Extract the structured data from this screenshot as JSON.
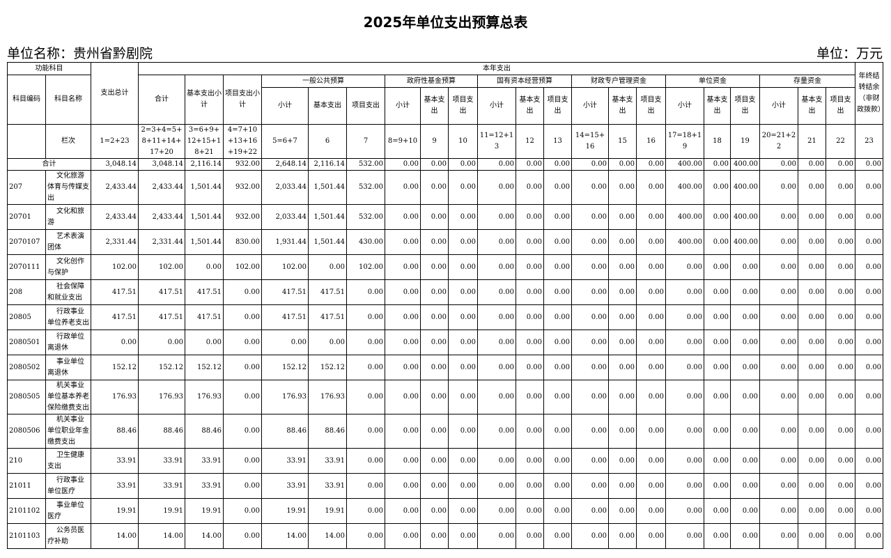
{
  "title": "2025年单位支出预算总表",
  "unit_name": "单位名称：贵州省黔剧院",
  "unit": "单位：万元",
  "header_rows": [
    [
      "功能科目",
      "支出总计",
      "本年支出",
      "年终结转结余（非财政拨款）"
    ],
    [
      "科目编码",
      "科目名称",
      "合计",
      "基本支出小计",
      "项目支出小计",
      "一般公共预算",
      "政府性基金预算",
      "国有资本经营预算",
      "财政专户管理资金",
      "单位资金",
      "存量资金"
    ],
    [
      "小计",
      "基本支出",
      "项目支出",
      "小计",
      "基本支出",
      "项目支出",
      "小计",
      "基本支出",
      "项目支出",
      "小计",
      "基本支出",
      "项目支出",
      "小计",
      "基本支出",
      "项目支出",
      "小计",
      "基本支出",
      "项目支出"
    ],
    [
      "栏次",
      "1=2+23",
      "2=3+4=5+8+11+14+17+20",
      "3=6+9+12+15+18+21",
      "4=7+10+13+16+19+22",
      "5=6+7",
      "6",
      "7",
      "8=9+10",
      "9",
      "10",
      "11=12+13",
      "12",
      "13",
      "14=15+16",
      "15",
      "16",
      "17=18+19",
      "18",
      "19",
      "20=21+22",
      "21",
      "22",
      "23"
    ]
  ],
  "total": {
    "label": "合计",
    "values": [
      "3,048.14",
      "3,048.14",
      "2,116.14",
      "932.00",
      "2,648.14",
      "2,116.14",
      "532.00",
      "0.00",
      "0.00",
      "0.00",
      "0.00",
      "0.00",
      "0.00",
      "0.00",
      "0.00",
      "0.00",
      "400.00",
      "0.00",
      "400.00",
      "0.00",
      "0.00",
      "0.00",
      "0.00"
    ]
  },
  "rows": [
    {
      "code": "207",
      "name": "文化旅游体育与传媒支出",
      "values": [
        "2,433.44",
        "2,433.44",
        "1,501.44",
        "932.00",
        "2,033.44",
        "1,501.44",
        "532.00",
        "0.00",
        "0.00",
        "0.00",
        "0.00",
        "0.00",
        "0.00",
        "0.00",
        "0.00",
        "0.00",
        "400.00",
        "0.00",
        "400.00",
        "0.00",
        "0.00",
        "0.00",
        "0.00"
      ]
    },
    {
      "code": "20701",
      "name": "文化和旅游",
      "values": [
        "2,433.44",
        "2,433.44",
        "1,501.44",
        "932.00",
        "2,033.44",
        "1,501.44",
        "532.00",
        "0.00",
        "0.00",
        "0.00",
        "0.00",
        "0.00",
        "0.00",
        "0.00",
        "0.00",
        "0.00",
        "400.00",
        "0.00",
        "400.00",
        "0.00",
        "0.00",
        "0.00",
        "0.00"
      ]
    },
    {
      "code": "2070107",
      "name": "艺术表演团体",
      "values": [
        "2,331.44",
        "2,331.44",
        "1,501.44",
        "830.00",
        "1,931.44",
        "1,501.44",
        "430.00",
        "0.00",
        "0.00",
        "0.00",
        "0.00",
        "0.00",
        "0.00",
        "0.00",
        "0.00",
        "0.00",
        "400.00",
        "0.00",
        "400.00",
        "0.00",
        "0.00",
        "0.00",
        "0.00"
      ]
    },
    {
      "code": "2070111",
      "name": "文化创作与保护",
      "values": [
        "102.00",
        "102.00",
        "0.00",
        "102.00",
        "102.00",
        "0.00",
        "102.00",
        "0.00",
        "0.00",
        "0.00",
        "0.00",
        "0.00",
        "0.00",
        "0.00",
        "0.00",
        "0.00",
        "0.00",
        "0.00",
        "0.00",
        "0.00",
        "0.00",
        "0.00",
        "0.00"
      ]
    },
    {
      "code": "208",
      "name": "社会保障和就业支出",
      "values": [
        "417.51",
        "417.51",
        "417.51",
        "0.00",
        "417.51",
        "417.51",
        "0.00",
        "0.00",
        "0.00",
        "0.00",
        "0.00",
        "0.00",
        "0.00",
        "0.00",
        "0.00",
        "0.00",
        "0.00",
        "0.00",
        "0.00",
        "0.00",
        "0.00",
        "0.00",
        "0.00"
      ]
    },
    {
      "code": "20805",
      "name": "行政事业单位养老支出",
      "values": [
        "417.51",
        "417.51",
        "417.51",
        "0.00",
        "417.51",
        "417.51",
        "0.00",
        "0.00",
        "0.00",
        "0.00",
        "0.00",
        "0.00",
        "0.00",
        "0.00",
        "0.00",
        "0.00",
        "0.00",
        "0.00",
        "0.00",
        "0.00",
        "0.00",
        "0.00",
        "0.00"
      ]
    },
    {
      "code": "2080501",
      "name": "行政单位离退休",
      "values": [
        "0.00",
        "0.00",
        "0.00",
        "0.00",
        "0.00",
        "0.00",
        "0.00",
        "0.00",
        "0.00",
        "0.00",
        "0.00",
        "0.00",
        "0.00",
        "0.00",
        "0.00",
        "0.00",
        "0.00",
        "0.00",
        "0.00",
        "0.00",
        "0.00",
        "0.00",
        "0.00"
      ]
    },
    {
      "code": "2080502",
      "name": "事业单位离退休",
      "values": [
        "152.12",
        "152.12",
        "152.12",
        "0.00",
        "152.12",
        "152.12",
        "0.00",
        "0.00",
        "0.00",
        "0.00",
        "0.00",
        "0.00",
        "0.00",
        "0.00",
        "0.00",
        "0.00",
        "0.00",
        "0.00",
        "0.00",
        "0.00",
        "0.00",
        "0.00",
        "0.00"
      ]
    },
    {
      "code": "2080505",
      "name": "机关事业单位基本养老保险缴费支出",
      "values": [
        "176.93",
        "176.93",
        "176.93",
        "0.00",
        "176.93",
        "176.93",
        "0.00",
        "0.00",
        "0.00",
        "0.00",
        "0.00",
        "0.00",
        "0.00",
        "0.00",
        "0.00",
        "0.00",
        "0.00",
        "0.00",
        "0.00",
        "0.00",
        "0.00",
        "0.00",
        "0.00"
      ]
    },
    {
      "code": "2080506",
      "name": "机关事业单位职业年金缴费支出",
      "values": [
        "88.46",
        "88.46",
        "88.46",
        "0.00",
        "88.46",
        "88.46",
        "0.00",
        "0.00",
        "0.00",
        "0.00",
        "0.00",
        "0.00",
        "0.00",
        "0.00",
        "0.00",
        "0.00",
        "0.00",
        "0.00",
        "0.00",
        "0.00",
        "0.00",
        "0.00",
        "0.00"
      ]
    },
    {
      "code": "210",
      "name": "卫生健康支出",
      "values": [
        "33.91",
        "33.91",
        "33.91",
        "0.00",
        "33.91",
        "33.91",
        "0.00",
        "0.00",
        "0.00",
        "0.00",
        "0.00",
        "0.00",
        "0.00",
        "0.00",
        "0.00",
        "0.00",
        "0.00",
        "0.00",
        "0.00",
        "0.00",
        "0.00",
        "0.00",
        "0.00"
      ]
    },
    {
      "code": "21011",
      "name": "行政事业单位医疗",
      "values": [
        "33.91",
        "33.91",
        "33.91",
        "0.00",
        "33.91",
        "33.91",
        "0.00",
        "0.00",
        "0.00",
        "0.00",
        "0.00",
        "0.00",
        "0.00",
        "0.00",
        "0.00",
        "0.00",
        "0.00",
        "0.00",
        "0.00",
        "0.00",
        "0.00",
        "0.00",
        "0.00"
      ]
    },
    {
      "code": "2101102",
      "name": "事业单位医疗",
      "values": [
        "19.91",
        "19.91",
        "19.91",
        "0.00",
        "19.91",
        "19.91",
        "0.00",
        "0.00",
        "0.00",
        "0.00",
        "0.00",
        "0.00",
        "0.00",
        "0.00",
        "0.00",
        "0.00",
        "0.00",
        "0.00",
        "0.00",
        "0.00",
        "0.00",
        "0.00",
        "0.00"
      ]
    },
    {
      "code": "2101103",
      "name": "公务员医疗补助",
      "values": [
        "14.00",
        "14.00",
        "14.00",
        "0.00",
        "14.00",
        "14.00",
        "0.00",
        "0.00",
        "0.00",
        "0.00",
        "0.00",
        "0.00",
        "0.00",
        "0.00",
        "0.00",
        "0.00",
        "0.00",
        "0.00",
        "0.00",
        "0.00",
        "0.00",
        "0.00",
        "0.00"
      ]
    }
  ]
}
